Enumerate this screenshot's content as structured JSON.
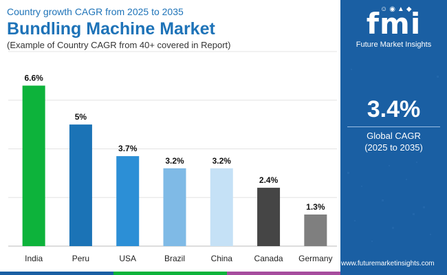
{
  "header": {
    "subtitle": "Country growth CAGR from 2025 to 2035",
    "title": "Bundling Machine Market",
    "note": "(Example of Country CAGR from 40+ covered in Report)"
  },
  "chart_data": {
    "type": "bar",
    "title": "Bundling Machine Market",
    "subtitle": "Country growth CAGR from 2025 to 2035",
    "xlabel": "",
    "ylabel": "",
    "ylim": [
      0,
      8
    ],
    "grid": true,
    "categories": [
      "India",
      "Peru",
      "USA",
      "Brazil",
      "China",
      "Canada",
      "Germany"
    ],
    "values": [
      6.6,
      5.0,
      3.7,
      3.2,
      3.2,
      2.4,
      1.3
    ],
    "value_labels": [
      "6.6%",
      "5%",
      "3.7%",
      "3.2%",
      "3.2%",
      "2.4%",
      "1.3%"
    ],
    "colors": [
      "#0db33b",
      "#1b73b6",
      "#2c8fd6",
      "#7fbae6",
      "#c5e1f6",
      "#454545",
      "#7f7f7f"
    ]
  },
  "panel": {
    "logo_text": "fmi",
    "logo_subtitle": "Future Market Insights",
    "cagr_value": "3.4%",
    "cagr_label": "Global CAGR",
    "cagr_range": "(2025 to 2035)",
    "background": "#1a5fa3"
  },
  "footer": {
    "website": "www.futuremarketinsights.com",
    "strip_colors": [
      "#1a5fa3",
      "#0db33b",
      "#8cc63f",
      "#f7941d",
      "#a64c9e",
      "#1a5fa3"
    ]
  }
}
